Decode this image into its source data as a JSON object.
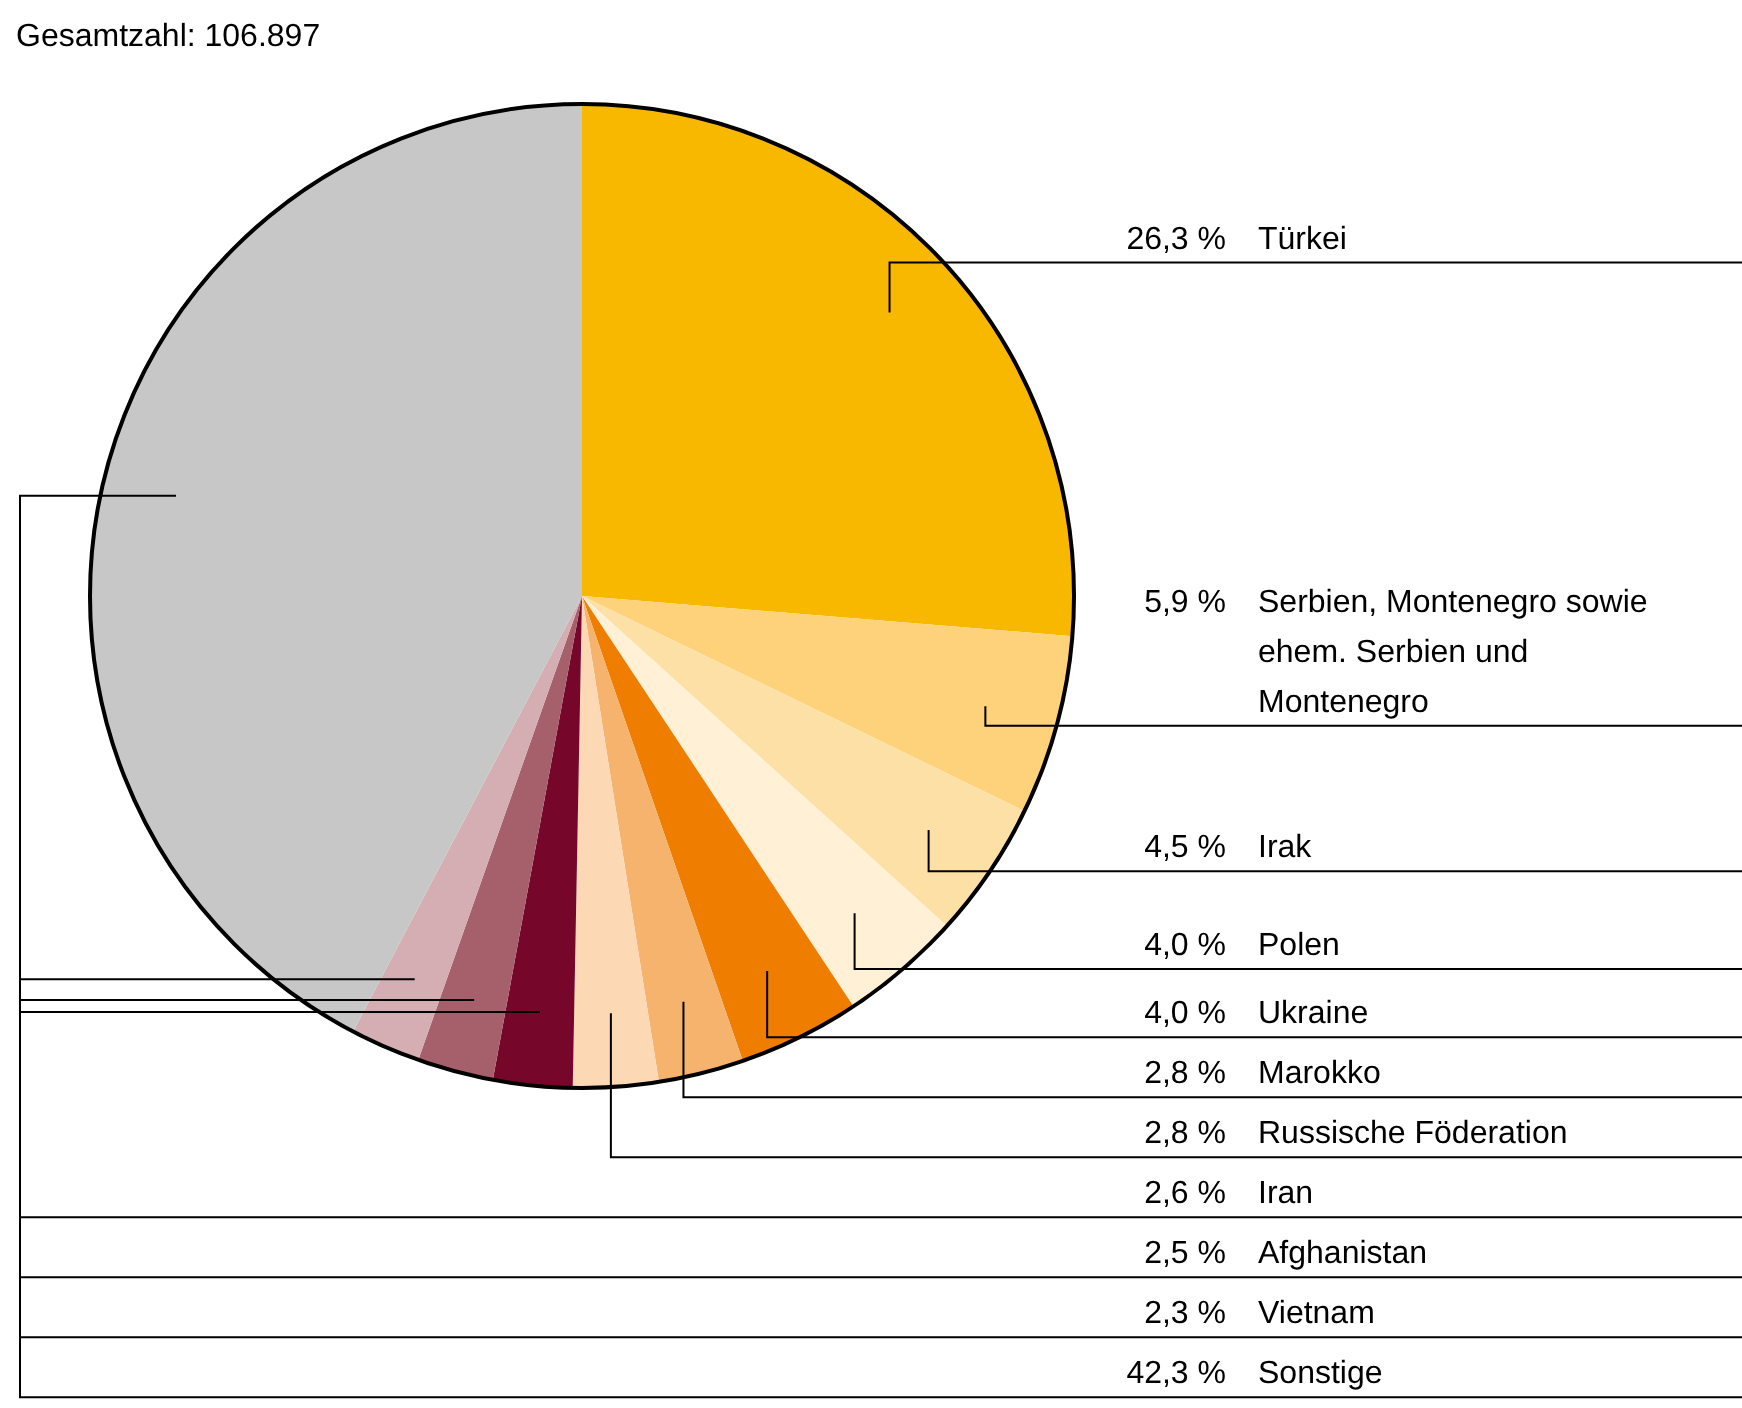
{
  "chart_data": {
    "type": "pie",
    "title": "Gesamtzahl: 106.897",
    "categories": [
      "Türkei",
      "Serbien, Montenegro sowie ehem. Serbien und Montenegro",
      "Irak",
      "Polen",
      "Ukraine",
      "Marokko",
      "Russische Föderation",
      "Iran",
      "Afghanistan",
      "Vietnam",
      "Sonstige"
    ],
    "values": [
      26.3,
      5.9,
      4.5,
      4.0,
      4.0,
      2.8,
      2.8,
      2.6,
      2.5,
      2.3,
      42.3
    ],
    "value_labels": [
      "26,3 %",
      "5,9 %",
      "4,5 %",
      "4,0 %",
      "4,0 %",
      "2,8 %",
      "2,8 %",
      "2,6 %",
      "2,5 %",
      "2,3 %",
      "42,3 %"
    ],
    "colors": [
      "#f9b800",
      "#fdd27a",
      "#fde0a6",
      "#fff0d6",
      "#ee7d00",
      "#f5b36e",
      "#fdd8b5",
      "#76072a",
      "#a6606c",
      "#d4aeb2",
      "#c6c7c6"
    ]
  }
}
